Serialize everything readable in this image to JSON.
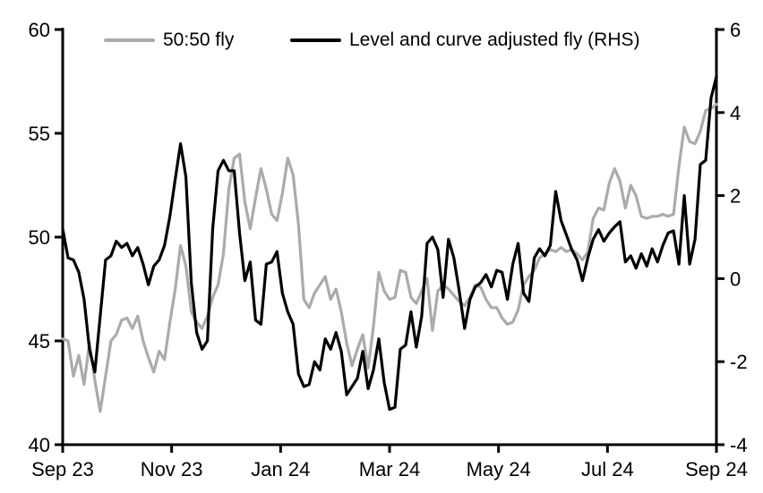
{
  "chart_data": {
    "type": "line",
    "title": "",
    "x_tick_labels": [
      "Sep 23",
      "Nov 23",
      "Jan 24",
      "Mar 24",
      "May 24",
      "Jul 24",
      "Sep 24"
    ],
    "left_axis": {
      "ticks": [
        40,
        45,
        50,
        55,
        60
      ],
      "range": [
        40,
        60
      ]
    },
    "right_axis": {
      "ticks": [
        -4,
        -2,
        0,
        2,
        4,
        6
      ],
      "range": [
        -4,
        6
      ]
    },
    "grid": "off",
    "legend_position": "top-center",
    "background_color": "#ffffff",
    "axis_color": "#000000",
    "series": [
      {
        "name": "50:50 fly",
        "axis": "left",
        "color": "#ababab",
        "values": [
          45.1,
          45.0,
          43.3,
          44.3,
          42.9,
          44.9,
          43.1,
          41.6,
          43.3,
          45.0,
          45.3,
          46.0,
          46.1,
          45.6,
          46.2,
          45.0,
          44.2,
          43.5,
          44.5,
          44.1,
          45.9,
          47.5,
          49.6,
          48.6,
          46.4,
          45.9,
          45.6,
          46.2,
          47.1,
          47.7,
          49.2,
          52.3,
          53.8,
          54.0,
          51.7,
          50.4,
          51.9,
          53.3,
          52.3,
          51.1,
          50.8,
          52.1,
          53.8,
          53.0,
          50.6,
          47.0,
          46.6,
          47.3,
          47.7,
          48.1,
          47.0,
          47.5,
          46.4,
          44.9,
          43.8,
          44.6,
          45.3,
          43.7,
          45.7,
          48.3,
          47.4,
          47.0,
          47.1,
          48.4,
          48.3,
          47.1,
          46.8,
          47.4,
          48.0,
          45.5,
          47.4,
          47.7,
          47.5,
          47.2,
          46.9,
          46.7,
          47.1,
          47.7,
          47.6,
          47.0,
          46.6,
          46.6,
          46.1,
          45.8,
          45.9,
          46.5,
          47.7,
          48.1,
          48.4,
          49.0,
          49.2,
          49.4,
          49.3,
          49.5,
          49.3,
          49.4,
          49.2,
          48.9,
          49.3,
          50.9,
          51.4,
          51.3,
          52.6,
          53.3,
          52.7,
          51.4,
          52.5,
          52.0,
          51.0,
          50.9,
          51.0,
          51.0,
          51.1,
          51.0,
          51.1,
          53.4,
          55.3,
          54.6,
          54.5,
          55.1,
          56.1,
          56.2,
          56.4
        ]
      },
      {
        "name": "Level and curve adjusted fly (RHS)",
        "axis": "right",
        "color": "#000000",
        "values": [
          1.2,
          0.5,
          0.45,
          0.15,
          -0.5,
          -1.7,
          -2.25,
          -0.9,
          0.45,
          0.55,
          0.9,
          0.75,
          0.85,
          0.55,
          0.75,
          0.35,
          -0.15,
          0.3,
          0.45,
          0.8,
          1.5,
          2.4,
          3.25,
          2.45,
          -0.1,
          -1.3,
          -1.7,
          -1.5,
          1.2,
          2.6,
          2.85,
          2.6,
          2.6,
          1.1,
          -0.05,
          0.4,
          -1.0,
          -1.1,
          0.35,
          0.4,
          0.65,
          -0.35,
          -0.8,
          -1.1,
          -2.3,
          -2.6,
          -2.55,
          -2.0,
          -2.2,
          -1.45,
          -1.7,
          -1.3,
          -1.75,
          -2.8,
          -2.6,
          -2.4,
          -1.75,
          -2.65,
          -2.2,
          -1.45,
          -2.5,
          -3.15,
          -3.1,
          -1.7,
          -1.6,
          -0.8,
          -1.65,
          -0.9,
          0.85,
          1.0,
          0.7,
          -0.45,
          0.95,
          0.5,
          -0.3,
          -1.2,
          -0.5,
          -0.2,
          -0.1,
          0.1,
          -0.2,
          0.2,
          0.15,
          -0.5,
          0.35,
          0.85,
          -0.35,
          -0.55,
          0.5,
          0.72,
          0.55,
          0.8,
          2.1,
          1.4,
          1.05,
          0.7,
          0.45,
          -0.05,
          0.5,
          0.95,
          1.18,
          0.9,
          1.1,
          1.25,
          1.37,
          0.4,
          0.55,
          0.25,
          0.6,
          0.3,
          0.72,
          0.4,
          0.8,
          1.1,
          1.15,
          0.35,
          2.0,
          0.35,
          0.95,
          2.75,
          2.85,
          4.35,
          4.87
        ]
      }
    ]
  }
}
